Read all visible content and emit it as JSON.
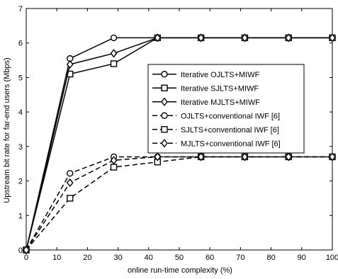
{
  "chart_data": {
    "type": "line",
    "title": "",
    "xlabel": "online run-time complexity (%)",
    "ylabel": "Upstream bit rate for far-end users (Mbps)",
    "xlim": [
      0,
      100
    ],
    "ylim": [
      0,
      7
    ],
    "xticks": [
      0,
      10,
      20,
      30,
      40,
      50,
      60,
      70,
      80,
      90,
      100
    ],
    "yticks": [
      0,
      1,
      2,
      3,
      4,
      5,
      6,
      7
    ],
    "grid": false,
    "legend_position": "center-right",
    "series": [
      {
        "name": "Iterative OJLTS+MIWF",
        "marker": "circle",
        "dash": "solid",
        "x": [
          0,
          14.3,
          28.6,
          42.9,
          57.1,
          71.4,
          85.7,
          100
        ],
        "y": [
          0,
          5.55,
          6.15,
          6.15,
          6.15,
          6.15,
          6.15,
          6.15
        ]
      },
      {
        "name": "Iterative SJLTS+MIWF",
        "marker": "square",
        "dash": "solid",
        "x": [
          0,
          14.3,
          28.6,
          42.9,
          57.1,
          71.4,
          85.7,
          100
        ],
        "y": [
          0,
          5.1,
          5.4,
          6.15,
          6.15,
          6.15,
          6.15,
          6.15
        ]
      },
      {
        "name": "Iterative MJLTS+MIWF",
        "marker": "diamond",
        "dash": "solid",
        "x": [
          0,
          14.3,
          28.6,
          42.9,
          57.1,
          71.4,
          85.7,
          100
        ],
        "y": [
          0,
          5.38,
          5.7,
          6.15,
          6.15,
          6.15,
          6.15,
          6.15
        ]
      },
      {
        "name": "OJLTS+conventional IWF [6]",
        "marker": "circle",
        "dash": "dashed",
        "x": [
          0,
          14.3,
          28.6,
          42.9,
          57.1,
          71.4,
          85.7,
          100
        ],
        "y": [
          0,
          2.22,
          2.7,
          2.7,
          2.7,
          2.7,
          2.7,
          2.7
        ]
      },
      {
        "name": "SJLTS+conventional IWF [6]",
        "marker": "square",
        "dash": "dashed",
        "x": [
          0,
          14.3,
          28.6,
          42.9,
          57.1,
          71.4,
          85.7,
          100
        ],
        "y": [
          0,
          1.5,
          2.4,
          2.55,
          2.7,
          2.7,
          2.7,
          2.7
        ]
      },
      {
        "name": "MJLTS+conventional IWF [6]",
        "marker": "diamond",
        "dash": "dashed",
        "x": [
          0,
          14.3,
          28.6,
          42.9,
          57.1,
          71.4,
          85.7,
          100
        ],
        "y": [
          0,
          1.95,
          2.6,
          2.7,
          2.7,
          2.7,
          2.7,
          2.7
        ]
      }
    ]
  }
}
